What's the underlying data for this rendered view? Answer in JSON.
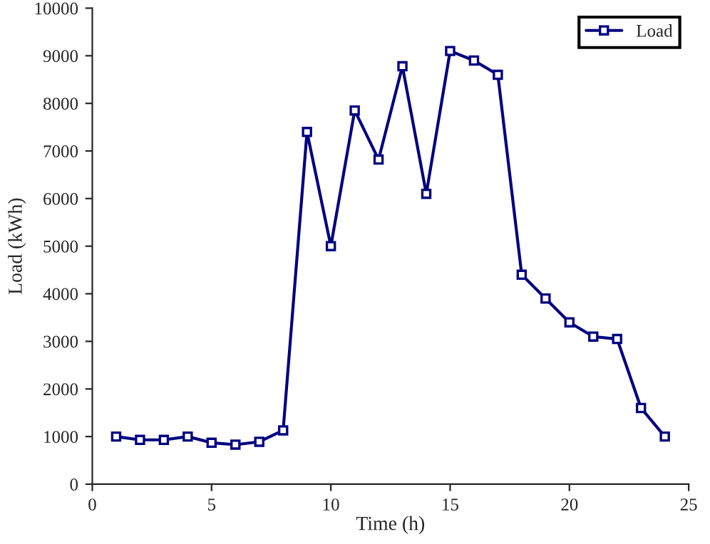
{
  "chart_data": {
    "type": "line",
    "xlabel": "Time (h)",
    "ylabel": "Load (kWh)",
    "x": [
      1,
      2,
      3,
      4,
      5,
      6,
      7,
      8,
      9,
      10,
      11,
      12,
      13,
      14,
      15,
      16,
      17,
      18,
      19,
      20,
      21,
      22,
      23,
      24
    ],
    "series": [
      {
        "name": "Load",
        "color": "#000080",
        "values": [
          1000,
          930,
          930,
          1000,
          870,
          830,
          890,
          1130,
          7400,
          5000,
          7850,
          6820,
          8780,
          6100,
          9100,
          8900,
          8600,
          4400,
          3900,
          3400,
          3100,
          3050,
          1600,
          1000
        ]
      }
    ],
    "xlim": [
      0,
      25
    ],
    "xticks": [
      0,
      5,
      10,
      15,
      20,
      25
    ],
    "ylim": [
      0,
      10000
    ],
    "yticks": [
      0,
      1000,
      2000,
      3000,
      4000,
      5000,
      6000,
      7000,
      8000,
      9000,
      10000
    ],
    "legend": "top right",
    "marker": "square",
    "line_style": "solid",
    "grid": false
  }
}
